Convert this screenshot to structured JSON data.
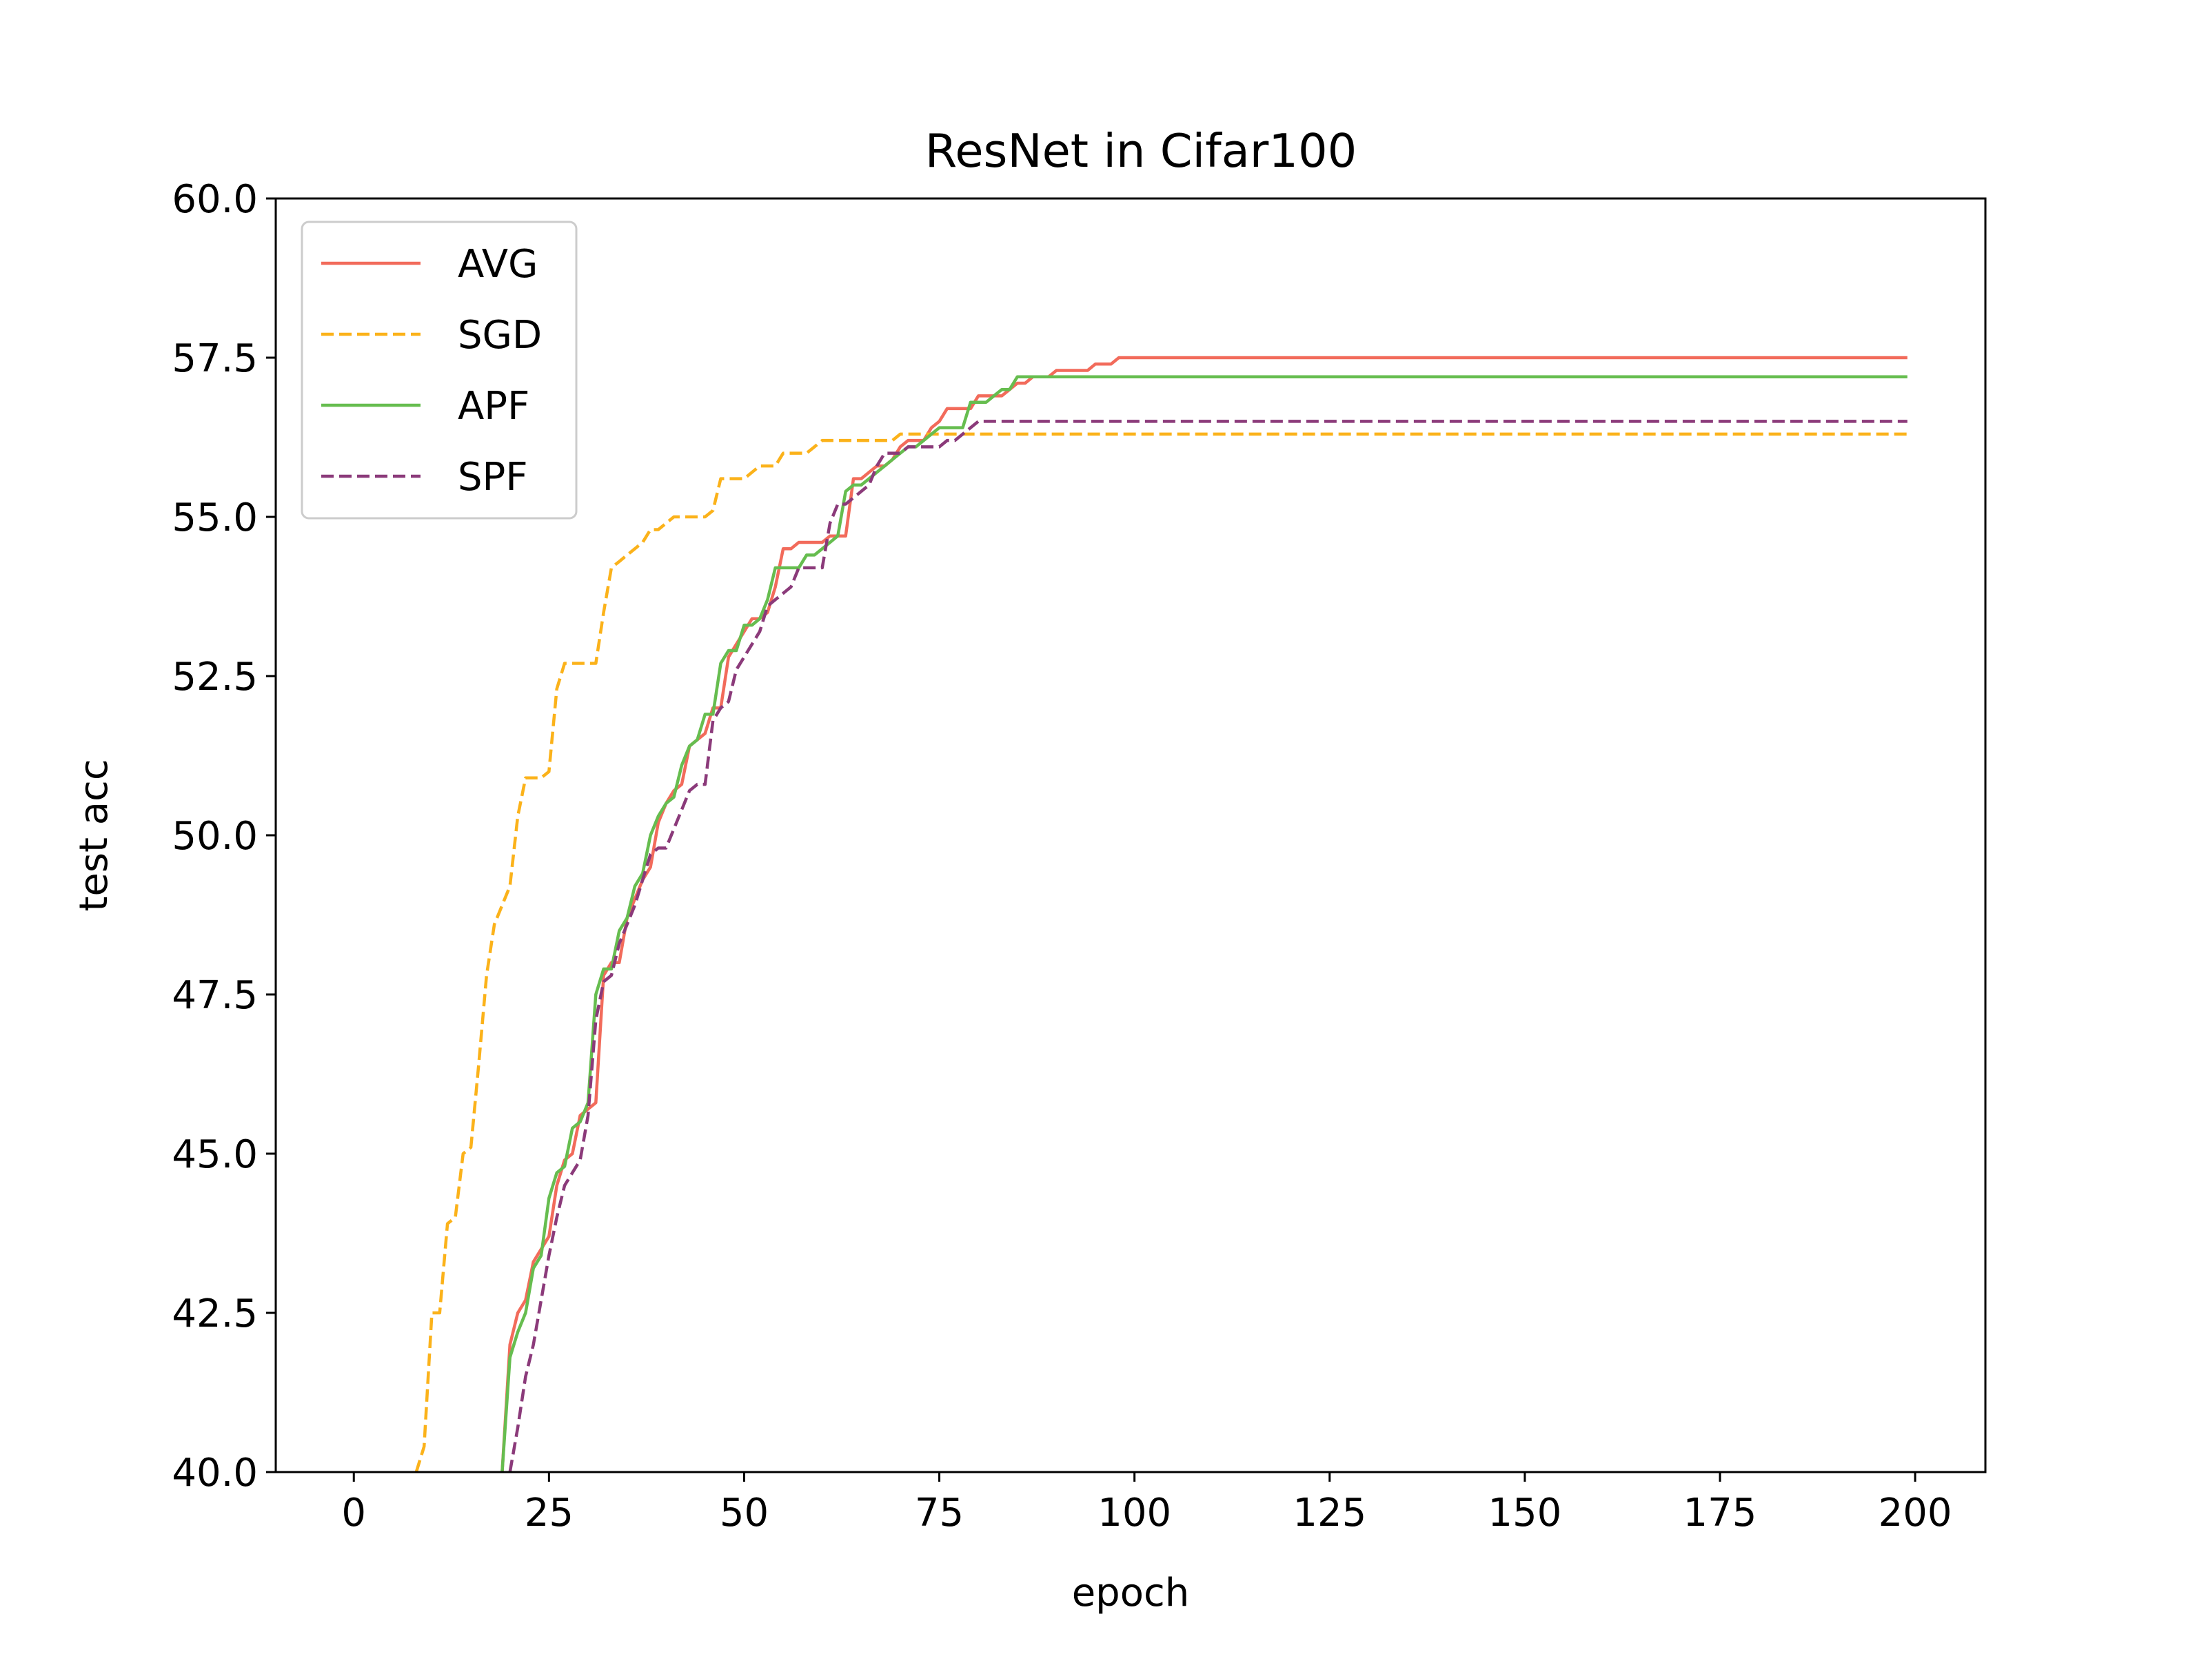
{
  "chart_data": {
    "type": "line",
    "title": "ResNet in Cifar100",
    "xlabel": "epoch",
    "ylabel": "test acc",
    "xlim": [
      -10,
      209
    ],
    "ylim": [
      40.0,
      60.0
    ],
    "x_ticks": [
      0,
      25,
      50,
      75,
      100,
      125,
      150,
      175,
      200
    ],
    "x_tick_labels": [
      "0",
      "25",
      "50",
      "75",
      "100",
      "125",
      "150",
      "175",
      "200"
    ],
    "y_ticks": [
      40.0,
      42.5,
      45.0,
      47.5,
      50.0,
      52.5,
      55.0,
      57.5,
      60.0
    ],
    "y_tick_labels": [
      "40.0",
      "42.5",
      "45.0",
      "47.5",
      "50.0",
      "52.5",
      "55.0",
      "57.5",
      "60.0"
    ],
    "grid": false,
    "legend_position": "upper left",
    "series": [
      {
        "name": "AVG",
        "color": "#f26b5b",
        "dash": "solid",
        "points": [
          [
            19,
            40.0
          ],
          [
            20,
            42.0
          ],
          [
            21,
            42.5
          ],
          [
            22,
            42.7
          ],
          [
            23,
            43.3
          ],
          [
            25,
            43.7
          ],
          [
            26,
            44.5
          ],
          [
            27,
            44.9
          ],
          [
            28,
            45.0
          ],
          [
            29,
            45.6
          ],
          [
            30,
            45.7
          ],
          [
            31,
            45.8
          ],
          [
            32,
            47.8
          ],
          [
            33,
            48.0
          ],
          [
            34,
            48.0
          ],
          [
            35,
            48.7
          ],
          [
            36,
            49.0
          ],
          [
            37,
            49.3
          ],
          [
            38,
            49.5
          ],
          [
            39,
            50.2
          ],
          [
            40,
            50.5
          ],
          [
            41,
            50.7
          ],
          [
            42,
            50.8
          ],
          [
            43,
            51.4
          ],
          [
            44,
            51.5
          ],
          [
            45,
            51.6
          ],
          [
            46,
            52.0
          ],
          [
            47,
            52.0
          ],
          [
            48,
            52.8
          ],
          [
            49,
            53.0
          ],
          [
            50,
            53.2
          ],
          [
            51,
            53.4
          ],
          [
            52,
            53.4
          ],
          [
            53,
            53.5
          ],
          [
            54,
            53.9
          ],
          [
            55,
            54.5
          ],
          [
            56,
            54.5
          ],
          [
            57,
            54.6
          ],
          [
            58,
            54.6
          ],
          [
            59,
            54.6
          ],
          [
            60,
            54.6
          ],
          [
            61,
            54.7
          ],
          [
            62,
            54.7
          ],
          [
            63,
            54.7
          ],
          [
            64,
            55.6
          ],
          [
            65,
            55.6
          ],
          [
            66,
            55.7
          ],
          [
            67,
            55.8
          ],
          [
            68,
            55.8
          ],
          [
            69,
            55.9
          ],
          [
            70,
            56.1
          ],
          [
            71,
            56.2
          ],
          [
            72,
            56.2
          ],
          [
            73,
            56.2
          ],
          [
            74,
            56.4
          ],
          [
            75,
            56.5
          ],
          [
            76,
            56.7
          ],
          [
            77,
            56.7
          ],
          [
            78,
            56.7
          ],
          [
            79,
            56.7
          ],
          [
            80,
            56.9
          ],
          [
            81,
            56.9
          ],
          [
            82,
            56.9
          ],
          [
            83,
            56.9
          ],
          [
            84,
            57.0
          ],
          [
            85,
            57.1
          ],
          [
            86,
            57.1
          ],
          [
            87,
            57.2
          ],
          [
            88,
            57.2
          ],
          [
            89,
            57.2
          ],
          [
            90,
            57.3
          ],
          [
            91,
            57.3
          ],
          [
            92,
            57.3
          ],
          [
            93,
            57.3
          ],
          [
            94,
            57.3
          ],
          [
            95,
            57.4
          ],
          [
            96,
            57.4
          ],
          [
            97,
            57.4
          ],
          [
            98,
            57.5
          ],
          [
            199,
            57.5
          ]
        ]
      },
      {
        "name": "SGD",
        "color": "#fbb21a",
        "dash": "dashed",
        "points": [
          [
            8,
            40.0
          ],
          [
            9,
            40.4
          ],
          [
            10,
            42.5
          ],
          [
            11,
            42.5
          ],
          [
            12,
            43.9
          ],
          [
            13,
            44.0
          ],
          [
            14,
            45.0
          ],
          [
            15,
            45.1
          ],
          [
            16,
            46.4
          ],
          [
            17,
            47.8
          ],
          [
            18,
            48.6
          ],
          [
            19,
            48.9
          ],
          [
            20,
            49.2
          ],
          [
            21,
            50.3
          ],
          [
            22,
            50.9
          ],
          [
            23,
            50.9
          ],
          [
            24,
            50.9
          ],
          [
            25,
            51.0
          ],
          [
            26,
            52.3
          ],
          [
            27,
            52.7
          ],
          [
            28,
            52.7
          ],
          [
            29,
            52.7
          ],
          [
            30,
            52.7
          ],
          [
            31,
            52.7
          ],
          [
            32,
            53.5
          ],
          [
            33,
            54.2
          ],
          [
            34,
            54.3
          ],
          [
            35,
            54.4
          ],
          [
            36,
            54.5
          ],
          [
            37,
            54.6
          ],
          [
            38,
            54.8
          ],
          [
            39,
            54.8
          ],
          [
            40,
            54.9
          ],
          [
            41,
            55.0
          ],
          [
            42,
            55.0
          ],
          [
            43,
            55.0
          ],
          [
            44,
            55.0
          ],
          [
            45,
            55.0
          ],
          [
            46,
            55.1
          ],
          [
            47,
            55.6
          ],
          [
            48,
            55.6
          ],
          [
            49,
            55.6
          ],
          [
            50,
            55.6
          ],
          [
            51,
            55.7
          ],
          [
            52,
            55.8
          ],
          [
            53,
            55.8
          ],
          [
            54,
            55.8
          ],
          [
            55,
            56.0
          ],
          [
            56,
            56.0
          ],
          [
            57,
            56.0
          ],
          [
            58,
            56.0
          ],
          [
            59,
            56.1
          ],
          [
            60,
            56.2
          ],
          [
            61,
            56.2
          ],
          [
            62,
            56.2
          ],
          [
            63,
            56.2
          ],
          [
            64,
            56.2
          ],
          [
            65,
            56.2
          ],
          [
            66,
            56.2
          ],
          [
            67,
            56.2
          ],
          [
            68,
            56.2
          ],
          [
            69,
            56.2
          ],
          [
            70,
            56.3
          ],
          [
            75,
            56.3
          ],
          [
            80,
            56.3
          ],
          [
            196,
            56.3
          ],
          [
            199,
            56.3
          ]
        ]
      },
      {
        "name": "APF",
        "color": "#66bd4f",
        "dash": "solid",
        "points": [
          [
            19,
            40.0
          ],
          [
            20,
            41.8
          ],
          [
            21,
            42.2
          ],
          [
            22,
            42.5
          ],
          [
            23,
            43.2
          ],
          [
            24,
            43.4
          ],
          [
            25,
            44.3
          ],
          [
            26,
            44.7
          ],
          [
            27,
            44.8
          ],
          [
            28,
            45.4
          ],
          [
            29,
            45.5
          ],
          [
            30,
            45.8
          ],
          [
            31,
            47.5
          ],
          [
            32,
            47.9
          ],
          [
            33,
            47.9
          ],
          [
            34,
            48.5
          ],
          [
            35,
            48.7
          ],
          [
            36,
            49.2
          ],
          [
            37,
            49.4
          ],
          [
            38,
            50.0
          ],
          [
            39,
            50.3
          ],
          [
            40,
            50.5
          ],
          [
            41,
            50.6
          ],
          [
            42,
            51.1
          ],
          [
            43,
            51.4
          ],
          [
            44,
            51.5
          ],
          [
            45,
            51.9
          ],
          [
            46,
            51.9
          ],
          [
            47,
            52.7
          ],
          [
            48,
            52.9
          ],
          [
            49,
            52.9
          ],
          [
            50,
            53.3
          ],
          [
            51,
            53.3
          ],
          [
            52,
            53.4
          ],
          [
            53,
            53.7
          ],
          [
            54,
            54.2
          ],
          [
            55,
            54.2
          ],
          [
            56,
            54.2
          ],
          [
            57,
            54.2
          ],
          [
            58,
            54.4
          ],
          [
            59,
            54.4
          ],
          [
            60,
            54.5
          ],
          [
            61,
            54.6
          ],
          [
            62,
            54.7
          ],
          [
            63,
            55.4
          ],
          [
            64,
            55.5
          ],
          [
            65,
            55.5
          ],
          [
            66,
            55.6
          ],
          [
            67,
            55.7
          ],
          [
            68,
            55.8
          ],
          [
            69,
            55.9
          ],
          [
            70,
            56.0
          ],
          [
            71,
            56.1
          ],
          [
            72,
            56.1
          ],
          [
            73,
            56.2
          ],
          [
            74,
            56.3
          ],
          [
            75,
            56.4
          ],
          [
            76,
            56.4
          ],
          [
            77,
            56.4
          ],
          [
            78,
            56.4
          ],
          [
            79,
            56.8
          ],
          [
            80,
            56.8
          ],
          [
            81,
            56.8
          ],
          [
            82,
            56.9
          ],
          [
            83,
            57.0
          ],
          [
            84,
            57.0
          ],
          [
            85,
            57.2
          ],
          [
            86,
            57.2
          ],
          [
            87,
            57.2
          ],
          [
            88,
            57.2
          ],
          [
            89,
            57.2
          ],
          [
            90,
            57.2
          ],
          [
            199,
            57.2
          ]
        ]
      },
      {
        "name": "SPF",
        "color": "#8b3a7a",
        "dash": "dashed",
        "points": [
          [
            20,
            40.0
          ],
          [
            21,
            40.7
          ],
          [
            22,
            41.5
          ],
          [
            23,
            42.0
          ],
          [
            24,
            42.7
          ],
          [
            25,
            43.4
          ],
          [
            26,
            44.0
          ],
          [
            27,
            44.5
          ],
          [
            28,
            44.7
          ],
          [
            29,
            44.9
          ],
          [
            30,
            45.6
          ],
          [
            31,
            47.1
          ],
          [
            32,
            47.7
          ],
          [
            33,
            47.8
          ],
          [
            34,
            48.3
          ],
          [
            35,
            48.6
          ],
          [
            36,
            48.9
          ],
          [
            37,
            49.3
          ],
          [
            38,
            49.7
          ],
          [
            39,
            49.8
          ],
          [
            40,
            49.8
          ],
          [
            41,
            50.1
          ],
          [
            42,
            50.4
          ],
          [
            43,
            50.7
          ],
          [
            44,
            50.8
          ],
          [
            45,
            50.8
          ],
          [
            46,
            51.8
          ],
          [
            47,
            52.0
          ],
          [
            48,
            52.1
          ],
          [
            49,
            52.6
          ],
          [
            50,
            52.8
          ],
          [
            51,
            53.0
          ],
          [
            52,
            53.2
          ],
          [
            53,
            53.6
          ],
          [
            54,
            53.7
          ],
          [
            55,
            53.8
          ],
          [
            56,
            53.9
          ],
          [
            57,
            54.2
          ],
          [
            58,
            54.2
          ],
          [
            59,
            54.2
          ],
          [
            60,
            54.2
          ],
          [
            61,
            54.9
          ],
          [
            62,
            55.2
          ],
          [
            63,
            55.2
          ],
          [
            64,
            55.3
          ],
          [
            65,
            55.4
          ],
          [
            66,
            55.5
          ],
          [
            67,
            55.8
          ],
          [
            68,
            56.0
          ],
          [
            69,
            56.0
          ],
          [
            70,
            56.0
          ],
          [
            71,
            56.1
          ],
          [
            72,
            56.1
          ],
          [
            73,
            56.1
          ],
          [
            74,
            56.1
          ],
          [
            75,
            56.1
          ],
          [
            76,
            56.2
          ],
          [
            77,
            56.2
          ],
          [
            78,
            56.3
          ],
          [
            79,
            56.4
          ],
          [
            80,
            56.5
          ],
          [
            81,
            56.5
          ],
          [
            82,
            56.5
          ],
          [
            83,
            56.5
          ],
          [
            199,
            56.5
          ]
        ]
      }
    ]
  }
}
